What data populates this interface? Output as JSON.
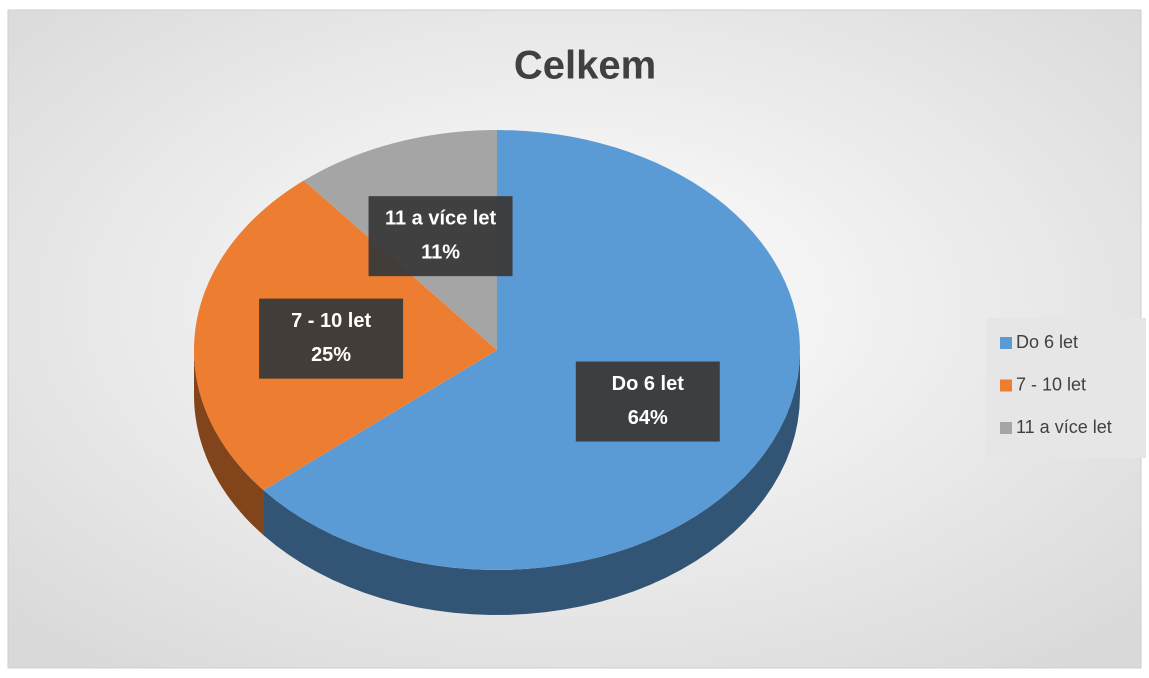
{
  "chart_data": {
    "type": "pie",
    "title": "Celkem",
    "categories": [
      "Do 6 let",
      "7 - 10 let",
      "11 a více let"
    ],
    "values": [
      64,
      25,
      11
    ],
    "value_labels": [
      "64%",
      "25%",
      "11%"
    ],
    "colors": [
      "#5b9bd5",
      "#ed7d31",
      "#a5a5a5"
    ],
    "legend": "right"
  }
}
